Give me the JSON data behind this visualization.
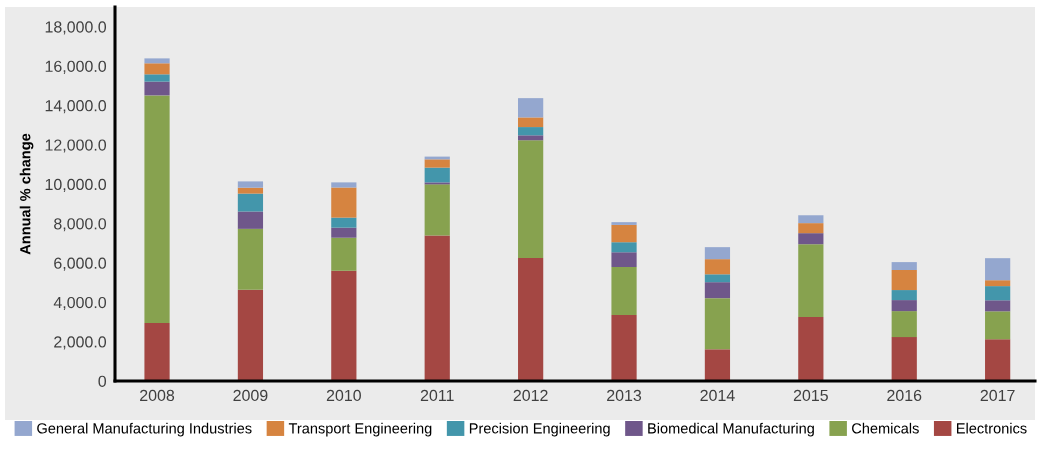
{
  "chart_data": {
    "type": "bar",
    "stacked": true,
    "ylabel": "Annual % change",
    "categories": [
      "2008",
      "2009",
      "2010",
      "2011",
      "2012",
      "2013",
      "2014",
      "2015",
      "2016",
      "2017"
    ],
    "series": [
      {
        "name": "Electronics",
        "color": "#a44743",
        "values": [
          2950,
          4630,
          5600,
          7390,
          6250,
          3350,
          1610,
          3250,
          2230,
          2120
        ]
      },
      {
        "name": "Chemicals",
        "color": "#87a24f",
        "values": [
          11560,
          3100,
          1680,
          2600,
          5980,
          2440,
          2600,
          3700,
          1320,
          1420
        ]
      },
      {
        "name": "Biomedical Manufacturing",
        "color": "#6f578a",
        "values": [
          700,
          880,
          510,
          100,
          250,
          750,
          810,
          560,
          560,
          560
        ]
      },
      {
        "name": "Precision Engineering",
        "color": "#4396ab",
        "values": [
          370,
          910,
          510,
          750,
          420,
          510,
          400,
          0,
          510,
          720
        ]
      },
      {
        "name": "Transport Engineering",
        "color": "#d68440",
        "values": [
          560,
          300,
          1530,
          420,
          490,
          880,
          770,
          510,
          1020,
          300
        ]
      },
      {
        "name": "General Manufacturing Industries",
        "color": "#94a7cf",
        "values": [
          250,
          320,
          260,
          140,
          980,
          140,
          610,
          400,
          400,
          1120
        ]
      }
    ],
    "ylim": [
      0,
      19000
    ],
    "yticks": [
      {
        "value": 0,
        "label": "0"
      },
      {
        "value": 2000,
        "label": "2,000.0"
      },
      {
        "value": 4000,
        "label": "4,000.0"
      },
      {
        "value": 6000,
        "label": "6,000.0"
      },
      {
        "value": 8000,
        "label": "8,000.0"
      },
      {
        "value": 10000,
        "label": "10,000.0"
      },
      {
        "value": 12000,
        "label": "12,000.0"
      },
      {
        "value": 14000,
        "label": "14,000.0"
      },
      {
        "value": 16000,
        "label": "16,000.0"
      },
      {
        "value": 18000,
        "label": "18,000.0"
      }
    ],
    "grid": false,
    "legend": "bottom"
  }
}
